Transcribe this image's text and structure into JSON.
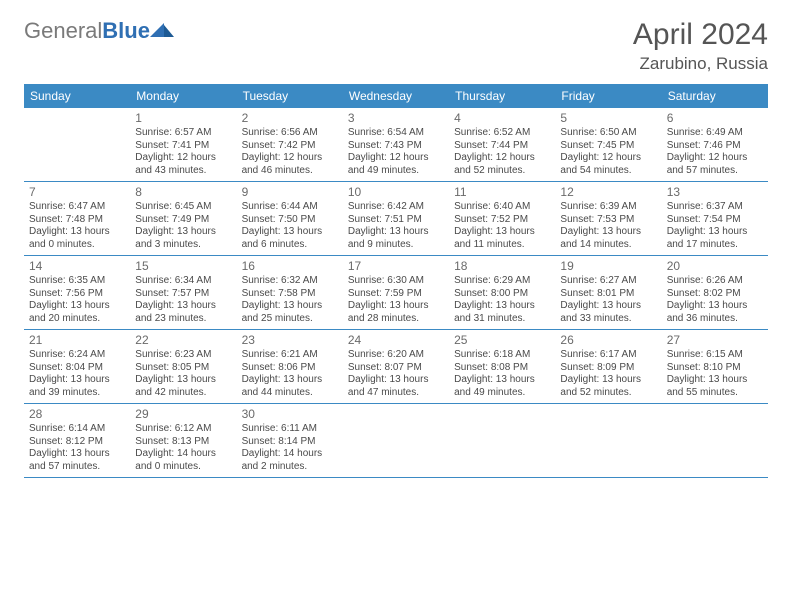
{
  "brand": {
    "part1": "General",
    "part2": "Blue"
  },
  "title": "April 2024",
  "location": "Zarubino, Russia",
  "colors": {
    "header_bg": "#3b8ac4",
    "header_text": "#ffffff",
    "border": "#3b8ac4",
    "text": "#4a4a4a",
    "daynum": "#6a6a6a",
    "title": "#555555"
  },
  "day_names": [
    "Sunday",
    "Monday",
    "Tuesday",
    "Wednesday",
    "Thursday",
    "Friday",
    "Saturday"
  ],
  "weeks": [
    [
      null,
      {
        "n": "1",
        "sr": "Sunrise: 6:57 AM",
        "ss": "Sunset: 7:41 PM",
        "dl1": "Daylight: 12 hours",
        "dl2": "and 43 minutes."
      },
      {
        "n": "2",
        "sr": "Sunrise: 6:56 AM",
        "ss": "Sunset: 7:42 PM",
        "dl1": "Daylight: 12 hours",
        "dl2": "and 46 minutes."
      },
      {
        "n": "3",
        "sr": "Sunrise: 6:54 AM",
        "ss": "Sunset: 7:43 PM",
        "dl1": "Daylight: 12 hours",
        "dl2": "and 49 minutes."
      },
      {
        "n": "4",
        "sr": "Sunrise: 6:52 AM",
        "ss": "Sunset: 7:44 PM",
        "dl1": "Daylight: 12 hours",
        "dl2": "and 52 minutes."
      },
      {
        "n": "5",
        "sr": "Sunrise: 6:50 AM",
        "ss": "Sunset: 7:45 PM",
        "dl1": "Daylight: 12 hours",
        "dl2": "and 54 minutes."
      },
      {
        "n": "6",
        "sr": "Sunrise: 6:49 AM",
        "ss": "Sunset: 7:46 PM",
        "dl1": "Daylight: 12 hours",
        "dl2": "and 57 minutes."
      }
    ],
    [
      {
        "n": "7",
        "sr": "Sunrise: 6:47 AM",
        "ss": "Sunset: 7:48 PM",
        "dl1": "Daylight: 13 hours",
        "dl2": "and 0 minutes."
      },
      {
        "n": "8",
        "sr": "Sunrise: 6:45 AM",
        "ss": "Sunset: 7:49 PM",
        "dl1": "Daylight: 13 hours",
        "dl2": "and 3 minutes."
      },
      {
        "n": "9",
        "sr": "Sunrise: 6:44 AM",
        "ss": "Sunset: 7:50 PM",
        "dl1": "Daylight: 13 hours",
        "dl2": "and 6 minutes."
      },
      {
        "n": "10",
        "sr": "Sunrise: 6:42 AM",
        "ss": "Sunset: 7:51 PM",
        "dl1": "Daylight: 13 hours",
        "dl2": "and 9 minutes."
      },
      {
        "n": "11",
        "sr": "Sunrise: 6:40 AM",
        "ss": "Sunset: 7:52 PM",
        "dl1": "Daylight: 13 hours",
        "dl2": "and 11 minutes."
      },
      {
        "n": "12",
        "sr": "Sunrise: 6:39 AM",
        "ss": "Sunset: 7:53 PM",
        "dl1": "Daylight: 13 hours",
        "dl2": "and 14 minutes."
      },
      {
        "n": "13",
        "sr": "Sunrise: 6:37 AM",
        "ss": "Sunset: 7:54 PM",
        "dl1": "Daylight: 13 hours",
        "dl2": "and 17 minutes."
      }
    ],
    [
      {
        "n": "14",
        "sr": "Sunrise: 6:35 AM",
        "ss": "Sunset: 7:56 PM",
        "dl1": "Daylight: 13 hours",
        "dl2": "and 20 minutes."
      },
      {
        "n": "15",
        "sr": "Sunrise: 6:34 AM",
        "ss": "Sunset: 7:57 PM",
        "dl1": "Daylight: 13 hours",
        "dl2": "and 23 minutes."
      },
      {
        "n": "16",
        "sr": "Sunrise: 6:32 AM",
        "ss": "Sunset: 7:58 PM",
        "dl1": "Daylight: 13 hours",
        "dl2": "and 25 minutes."
      },
      {
        "n": "17",
        "sr": "Sunrise: 6:30 AM",
        "ss": "Sunset: 7:59 PM",
        "dl1": "Daylight: 13 hours",
        "dl2": "and 28 minutes."
      },
      {
        "n": "18",
        "sr": "Sunrise: 6:29 AM",
        "ss": "Sunset: 8:00 PM",
        "dl1": "Daylight: 13 hours",
        "dl2": "and 31 minutes."
      },
      {
        "n": "19",
        "sr": "Sunrise: 6:27 AM",
        "ss": "Sunset: 8:01 PM",
        "dl1": "Daylight: 13 hours",
        "dl2": "and 33 minutes."
      },
      {
        "n": "20",
        "sr": "Sunrise: 6:26 AM",
        "ss": "Sunset: 8:02 PM",
        "dl1": "Daylight: 13 hours",
        "dl2": "and 36 minutes."
      }
    ],
    [
      {
        "n": "21",
        "sr": "Sunrise: 6:24 AM",
        "ss": "Sunset: 8:04 PM",
        "dl1": "Daylight: 13 hours",
        "dl2": "and 39 minutes."
      },
      {
        "n": "22",
        "sr": "Sunrise: 6:23 AM",
        "ss": "Sunset: 8:05 PM",
        "dl1": "Daylight: 13 hours",
        "dl2": "and 42 minutes."
      },
      {
        "n": "23",
        "sr": "Sunrise: 6:21 AM",
        "ss": "Sunset: 8:06 PM",
        "dl1": "Daylight: 13 hours",
        "dl2": "and 44 minutes."
      },
      {
        "n": "24",
        "sr": "Sunrise: 6:20 AM",
        "ss": "Sunset: 8:07 PM",
        "dl1": "Daylight: 13 hours",
        "dl2": "and 47 minutes."
      },
      {
        "n": "25",
        "sr": "Sunrise: 6:18 AM",
        "ss": "Sunset: 8:08 PM",
        "dl1": "Daylight: 13 hours",
        "dl2": "and 49 minutes."
      },
      {
        "n": "26",
        "sr": "Sunrise: 6:17 AM",
        "ss": "Sunset: 8:09 PM",
        "dl1": "Daylight: 13 hours",
        "dl2": "and 52 minutes."
      },
      {
        "n": "27",
        "sr": "Sunrise: 6:15 AM",
        "ss": "Sunset: 8:10 PM",
        "dl1": "Daylight: 13 hours",
        "dl2": "and 55 minutes."
      }
    ],
    [
      {
        "n": "28",
        "sr": "Sunrise: 6:14 AM",
        "ss": "Sunset: 8:12 PM",
        "dl1": "Daylight: 13 hours",
        "dl2": "and 57 minutes."
      },
      {
        "n": "29",
        "sr": "Sunrise: 6:12 AM",
        "ss": "Sunset: 8:13 PM",
        "dl1": "Daylight: 14 hours",
        "dl2": "and 0 minutes."
      },
      {
        "n": "30",
        "sr": "Sunrise: 6:11 AM",
        "ss": "Sunset: 8:14 PM",
        "dl1": "Daylight: 14 hours",
        "dl2": "and 2 minutes."
      },
      null,
      null,
      null,
      null
    ]
  ]
}
